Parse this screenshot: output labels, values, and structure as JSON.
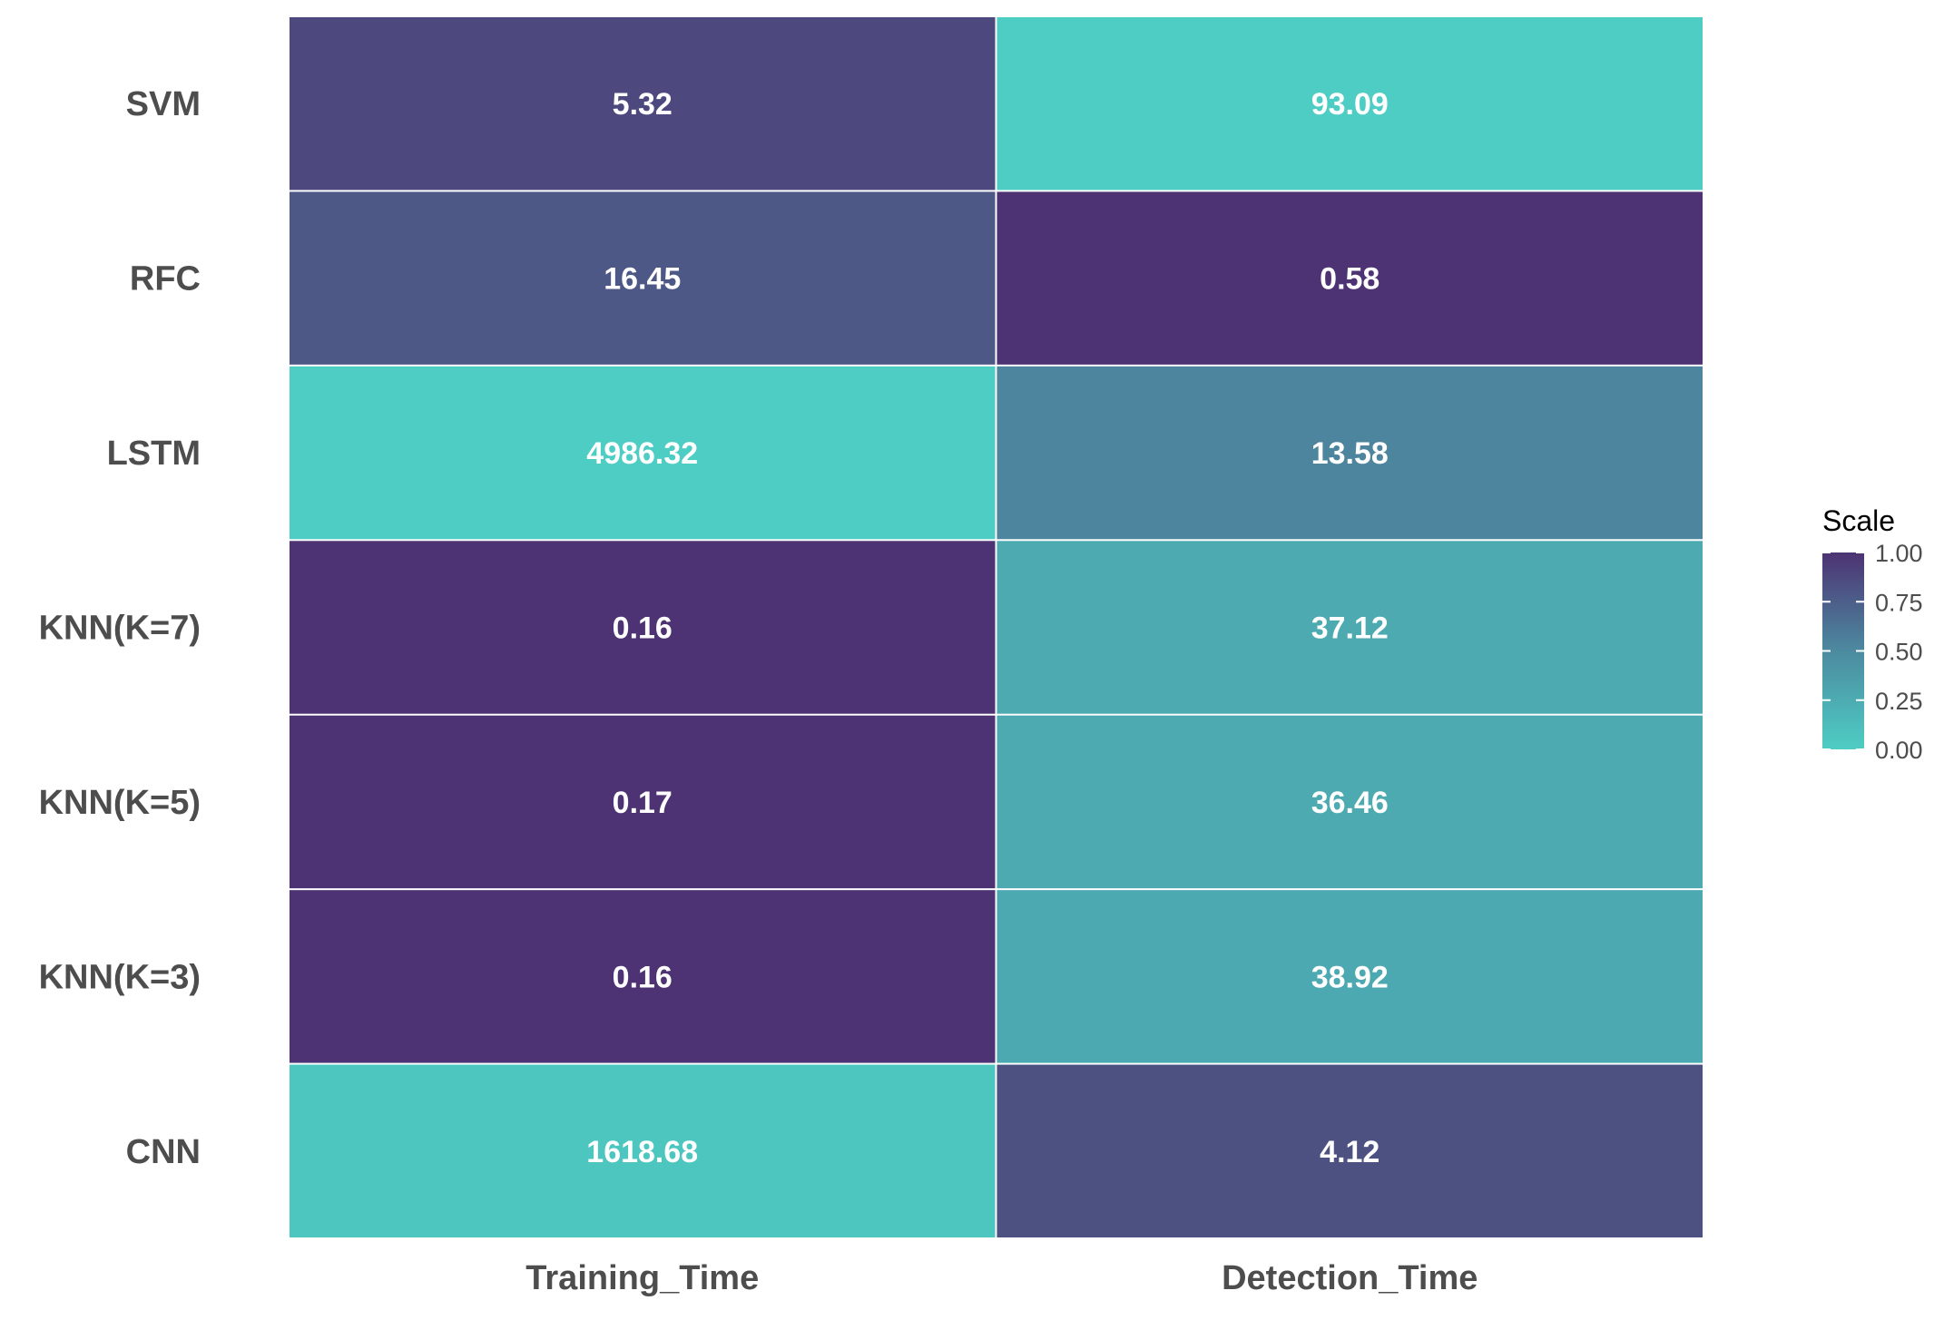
{
  "chart_data": {
    "type": "heatmap",
    "rows": [
      "SVM",
      "RFC",
      "LSTM",
      "KNN(K=7)",
      "KNN(K=5)",
      "KNN(K=3)",
      "CNN"
    ],
    "columns": [
      "Training_Time",
      "Detection_Time"
    ],
    "values": [
      [
        5.32,
        93.09
      ],
      [
        16.45,
        0.58
      ],
      [
        4986.32,
        13.58
      ],
      [
        0.16,
        37.12
      ],
      [
        0.17,
        36.46
      ],
      [
        0.16,
        38.92
      ],
      [
        1618.68,
        4.12
      ]
    ],
    "value_labels": [
      [
        "5.32",
        "93.09"
      ],
      [
        "16.45",
        "0.58"
      ],
      [
        "4986.32",
        "13.58"
      ],
      [
        "0.16",
        "37.12"
      ],
      [
        "0.17",
        "36.46"
      ],
      [
        "0.16",
        "38.92"
      ],
      [
        "1618.68",
        "4.12"
      ]
    ],
    "scale": [
      [
        0.88,
        0.0
      ],
      [
        0.79,
        1.0
      ],
      [
        0.0,
        0.53
      ],
      [
        1.0,
        0.26
      ],
      [
        1.0,
        0.26
      ],
      [
        1.0,
        0.27
      ],
      [
        0.05,
        0.83
      ]
    ],
    "legend": {
      "title": "Scale",
      "ticks": [
        "1.00",
        "0.75",
        "0.50",
        "0.25",
        "0.00"
      ],
      "tick_values": [
        1.0,
        0.75,
        0.5,
        0.25,
        0.0
      ],
      "placement": "right"
    },
    "colors": {
      "high": "#4d3373",
      "mid": "#4c8aa0",
      "low": "#4ecdc4"
    },
    "grid": false
  }
}
